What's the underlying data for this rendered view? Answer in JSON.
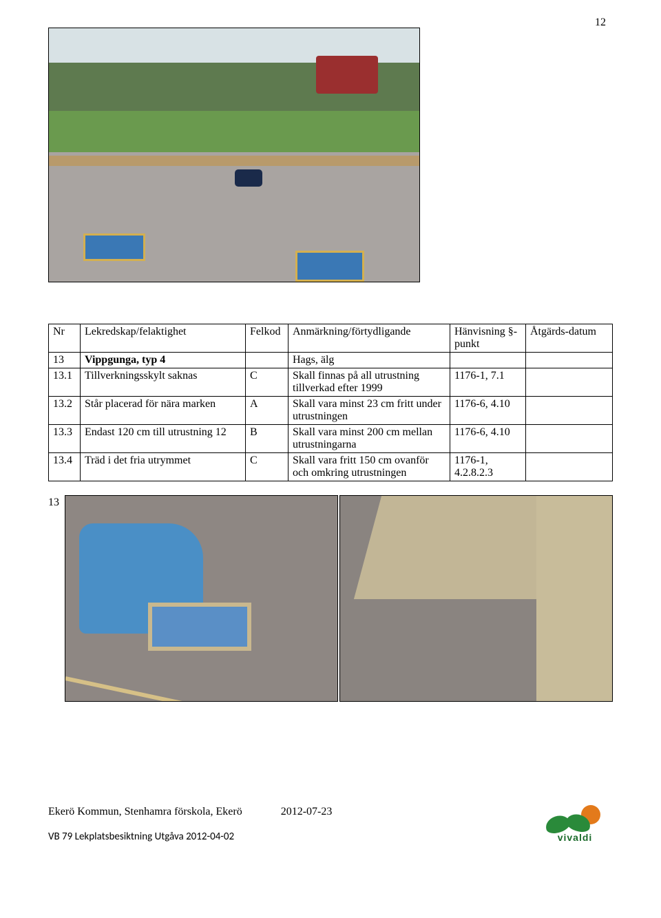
{
  "page_number_top": "12",
  "table": {
    "headers": {
      "nr": "Nr",
      "lekredskap": "Lekredskap/felaktighet",
      "felkod": "Felkod",
      "anmarkning": "Anmärkning/förtydligande",
      "hanvisning": "Hänvisning §-punkt",
      "atgard": "Åtgärds-datum"
    },
    "rows": [
      {
        "nr": "13",
        "lek": "Vippgunga, typ 4",
        "felkod": "",
        "anm": "Hags, älg",
        "hanv": "",
        "atg": "",
        "bold_lek": true
      },
      {
        "nr": "13.1",
        "lek": "Tillverkningsskylt saknas",
        "felkod": "C",
        "anm": "Skall finnas på all utrustning tillverkad efter 1999",
        "hanv": "1176-1, 7.1",
        "atg": ""
      },
      {
        "nr": "13.2",
        "lek": "Står placerad för nära marken",
        "felkod": "A",
        "anm": "Skall vara minst 23 cm fritt under utrustningen",
        "hanv": "1176-6, 4.10",
        "atg": ""
      },
      {
        "nr": "13.3",
        "lek": "Endast 120 cm till utrustning 12",
        "felkod": "B",
        "anm": "Skall vara minst 200 cm mellan utrustningarna",
        "hanv": "1176-6, 4.10",
        "atg": ""
      },
      {
        "nr": "13.4",
        "lek": "Träd i det fria utrymmet",
        "felkod": "C",
        "anm": "Skall vara fritt 150 cm ovanför och omkring utrustningen",
        "hanv": "1176-1, 4.2.8.2.3",
        "atg": ""
      }
    ]
  },
  "row13_label": "13",
  "footer": {
    "line1_left": "Ekerö Kommun, Stenhamra förskola, Ekerö",
    "line1_right": "2012-07-23",
    "line2": "VB 79 Lekplatsbesiktning Utgåva 2012-04-02",
    "logo_text": "vivaldi"
  }
}
